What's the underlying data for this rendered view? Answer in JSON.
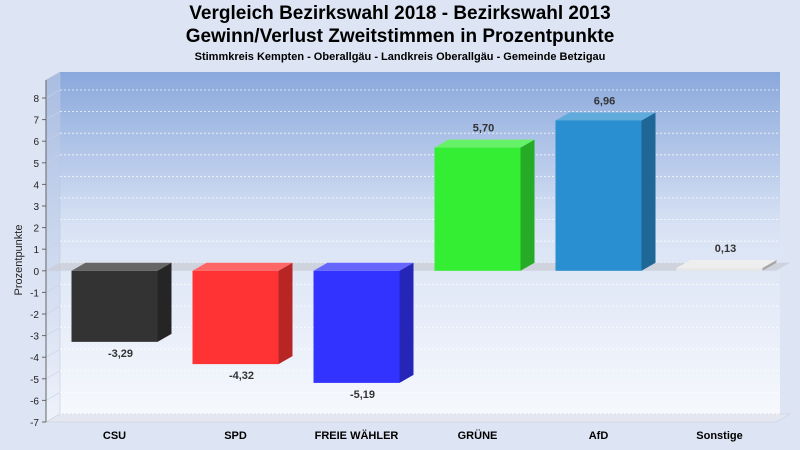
{
  "chart_data": {
    "type": "bar",
    "title": "Vergleich Bezirkswahl 2018 - Bezirkswahl 2013",
    "title2": "Gewinn/Verlust Zweitstimmen in Prozentpunkte",
    "subtitle": "Stimmkreis Kempten - Oberallgäu - Landkreis Oberallgäu - Gemeinde Betzigau",
    "ylabel": "Prozentpunkte",
    "xlabel": "",
    "ylim": [
      -7,
      8
    ],
    "yticks": [
      "8",
      "7",
      "6",
      "5",
      "4",
      "3",
      "2",
      "1",
      "0",
      "-1",
      "-2",
      "-3",
      "-4",
      "-5",
      "-6",
      "-7"
    ],
    "categories": [
      "CSU",
      "SPD",
      "FREIE WÄHLER",
      "GRÜNE",
      "AfD",
      "Sonstige"
    ],
    "values": [
      -3.29,
      -4.32,
      -5.19,
      5.7,
      6.96,
      0.13
    ],
    "value_labels": [
      "-3,29",
      "-4,32",
      "-5,19",
      "5,70",
      "6,96",
      "0,13"
    ],
    "colors": [
      "#333333",
      "#ff3333",
      "#3333ff",
      "#33ee33",
      "#2a8fd0",
      "#e8e8e8"
    ],
    "grid": true,
    "legend": "none"
  }
}
